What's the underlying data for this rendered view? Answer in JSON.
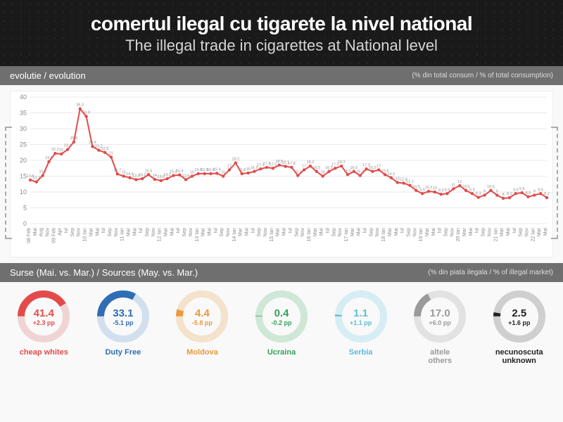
{
  "header": {
    "title_ro": "comertul ilegal cu tigarete la nivel national",
    "title_en": "The illegal trade in cigarettes at National level"
  },
  "chart_section": {
    "label": "evolutie / evolution",
    "sublabel": "(% din total consum / % of total consumption)"
  },
  "chart": {
    "type": "line",
    "line_color": "#e34b4b",
    "marker_color": "#e34b4b",
    "marker_radius": 2.2,
    "line_width": 2,
    "background_color": "#ffffff",
    "grid_color": "#e9e9e9",
    "axis_color": "#888888",
    "label_fontsize": 7,
    "ylim": [
      0,
      40
    ],
    "ytick_step": 5,
    "x_labels": [
      "08 Feb",
      "Mai",
      "Aug",
      "Nov",
      "09 Feb",
      "Apr",
      "Iul",
      "Sep",
      "Nov",
      "10 Ian",
      "Mar",
      "Mai",
      "Iul",
      "Sep",
      "Nov",
      "11 Ian",
      "Mar",
      "Mai",
      "Iul",
      "Sep",
      "Nov",
      "12 Ian",
      "Mar",
      "Mai",
      "Iul",
      "Sep",
      "Nov",
      "13 Ian",
      "Mar",
      "Mai",
      "Iul",
      "Sep",
      "Nov",
      "14 Ian",
      "Mar",
      "Mai",
      "Iul",
      "Sep",
      "Nov",
      "15 Ian",
      "Mar",
      "Mai",
      "Iul",
      "Sep",
      "Nov",
      "16 Ian",
      "Mar",
      "Mai",
      "Iul",
      "Sep",
      "Nov",
      "17 Ian",
      "Mar",
      "Mai",
      "Iul",
      "Sep",
      "Nov",
      "18 Ian",
      "Mar",
      "Mai",
      "Iul",
      "Sep",
      "Nov",
      "19 Ian",
      "Mar",
      "Mai",
      "Iul",
      "Sep",
      "Nov",
      "20 Ian",
      "Mar",
      "Mai",
      "Iul",
      "Sep",
      "Nov",
      "21 Ian",
      "Mar",
      "Mai",
      "Iul",
      "Sep",
      "Nov",
      "22 Ian",
      "Mar",
      "Mai"
    ],
    "values": [
      13.8,
      13.2,
      15.2,
      19.6,
      22.2,
      22.0,
      23.4,
      25.8,
      36.3,
      33.9,
      24.4,
      23.2,
      22.5,
      21.0,
      15.7,
      15.0,
      14.5,
      13.9,
      14.2,
      15.5,
      14.0,
      13.6,
      14.2,
      15.2,
      15.4,
      13.9,
      15.0,
      15.8,
      15.8,
      15.8,
      15.9,
      15.0,
      17.0,
      19.2,
      15.8,
      16.0,
      16.5,
      17.3,
      17.8,
      17.5,
      18.5,
      18.1,
      17.8,
      15.2,
      17.0,
      18.2,
      16.5,
      15.0,
      16.5,
      17.5,
      18.2,
      15.5,
      16.5,
      15.2,
      17.3,
      16.5,
      17.0,
      15.5,
      14.5,
      13.0,
      12.8,
      12.1,
      10.5,
      9.5,
      10.2,
      10.0,
      9.3,
      9.5,
      11.0,
      12.0,
      10.5,
      9.5,
      8.3,
      9.0,
      10.5,
      9.0,
      8.0,
      8.2,
      9.5,
      9.8,
      8.5,
      9.0,
      9.5,
      8.2
    ],
    "show_value_labels": true,
    "value_label_fontsize": 5.5,
    "value_label_color": "#909090"
  },
  "sources_section": {
    "label": "Surse (Mai. vs. Mar.) / Sources (May. vs. Mar.)",
    "sublabel": "(% din piata ilegala / % of illegal market)"
  },
  "sources": [
    {
      "label": "cheap whites",
      "value": "41.4",
      "delta": "+2.3 pp",
      "color": "#e34b4b",
      "ring_bg": "#f0d4d4",
      "delta_color": "#e34b4b"
    },
    {
      "label": "Duty Free",
      "value": "33.1",
      "delta": "-5.1 pp",
      "color": "#2f6db5",
      "ring_bg": "#d2dfee",
      "delta_color": "#2f6db5"
    },
    {
      "label": "Moldova",
      "value": "4.4",
      "delta": "-5.8 pp",
      "color": "#e89a3c",
      "ring_bg": "#f4e2cc",
      "delta_color": "#e89a3c"
    },
    {
      "label": "Ucraina",
      "value": "0.4",
      "delta": "-0.2 pp",
      "color": "#2fa35a",
      "ring_bg": "#cfe7d7",
      "delta_color": "#2fa35a"
    },
    {
      "label": "Serbia",
      "value": "1.1",
      "delta": "+1.1 pp",
      "color": "#5bbcd9",
      "ring_bg": "#d6edf4",
      "delta_color": "#5bbcd9"
    },
    {
      "label": "altele\nothers",
      "value": "17.0",
      "delta": "+6.0 pp",
      "color": "#9a9a9a",
      "ring_bg": "#e2e2e2",
      "delta_color": "#9a9a9a"
    },
    {
      "label": "necunoscuta\nunknown",
      "value": "2.5",
      "delta": "+1.6 pp",
      "color": "#222222",
      "ring_bg": "#cfcfcf",
      "delta_color": "#222222"
    }
  ]
}
